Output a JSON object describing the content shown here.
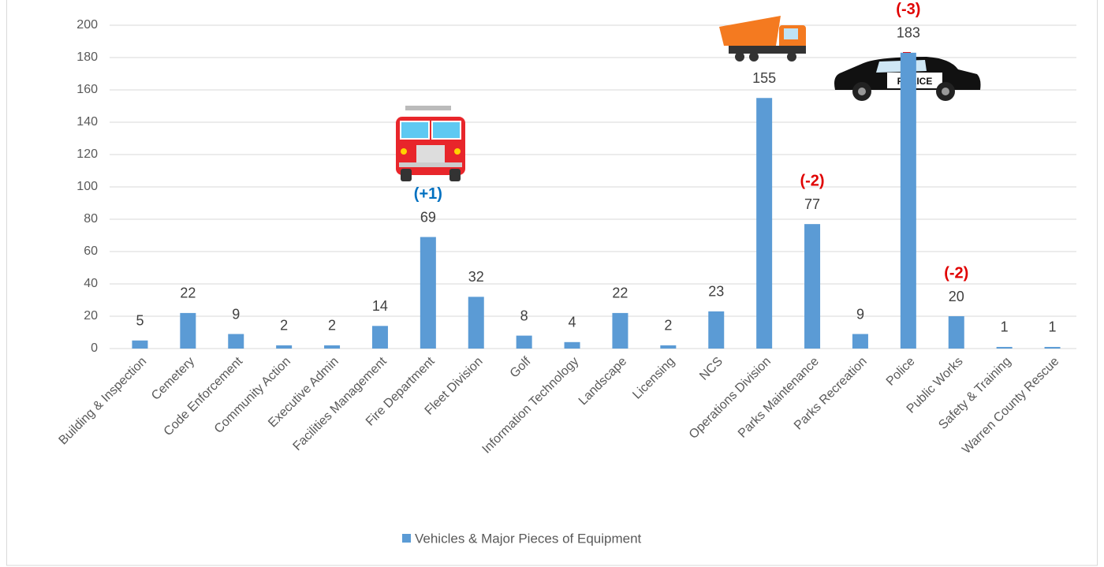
{
  "chart_data": {
    "type": "bar",
    "categories": [
      "Building & Inspection",
      "Cemetery",
      "Code Enforcement",
      "Community Action",
      "Executive Admin",
      "Facilities Management",
      "Fire Department",
      "Fleet Division",
      "Golf",
      "Information Technology",
      "Landscape",
      "Licensing",
      "NCS",
      "Operations Division",
      "Parks Maintenance",
      "Parks Recreation",
      "Police",
      "Public Works",
      "Safety & Training",
      "Warren County Rescue"
    ],
    "series": [
      {
        "name": "Vehicles & Major Pieces of Equipment",
        "color": "#5b9bd5",
        "values": [
          5,
          22,
          9,
          2,
          2,
          14,
          69,
          32,
          8,
          4,
          22,
          2,
          23,
          155,
          77,
          9,
          183,
          20,
          1,
          1
        ]
      }
    ],
    "change_labels": [
      null,
      null,
      null,
      null,
      null,
      null,
      "(+1)",
      null,
      null,
      null,
      null,
      null,
      null,
      null,
      "(-2)",
      null,
      "(-3)",
      "(-2)",
      null,
      null
    ],
    "increase_color": "#0070c0",
    "decrease_color": "#e00000",
    "ylim": [
      0,
      200
    ],
    "yticks": [
      0,
      20,
      40,
      60,
      80,
      100,
      120,
      140,
      160,
      180,
      200
    ],
    "grid": true,
    "legend": "bottom"
  }
}
